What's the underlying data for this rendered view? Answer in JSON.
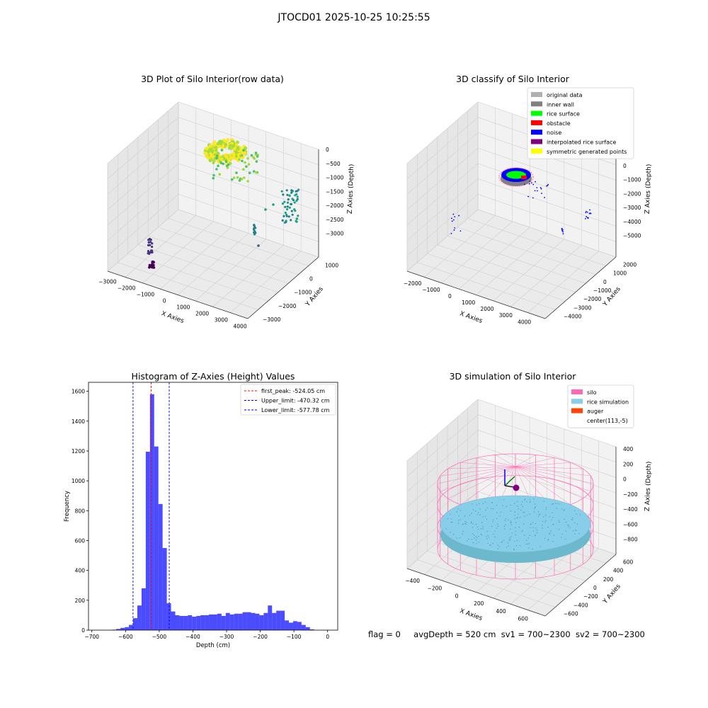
{
  "figure": {
    "suptitle": "JTOCD01 2025-10-25 10:25:55",
    "footer": {
      "flag": "flag = 0",
      "avg_depth": "avgDepth = 520 cm",
      "sv1": "sv1 = 700~2300",
      "sv2": "sv2 = 700~2300"
    }
  },
  "chart_data": [
    {
      "id": "raw",
      "type": "scatter",
      "title": "3D Plot of Silo Interior(row data)",
      "xlabel": "X Axies",
      "ylabel": "Y Axies",
      "zlabel": "Z Axies (Depth)",
      "x_ticks": [
        "−3000",
        "−2000",
        "−1000",
        "0",
        "1000",
        "2000",
        "3000",
        "4000"
      ],
      "y_ticks": [
        "1000",
        "0",
        "−1000",
        "−2000",
        "−3000"
      ],
      "z_ticks": [
        "0",
        "−500",
        "−1000",
        "−1500",
        "−2000",
        "−2500",
        "−3000"
      ],
      "colormap": "viridis"
    },
    {
      "id": "classify",
      "type": "scatter",
      "title": "3D classify of Silo Interior",
      "xlabel": "X Axies",
      "ylabel": "Y Axies",
      "zlabel": "Z Axies (Depth)",
      "x_ticks": [
        "−2000",
        "−1000",
        "0",
        "1000",
        "2000",
        "3000",
        "4000"
      ],
      "y_ticks": [
        "2000",
        "1000",
        "0",
        "−1000",
        "−2000",
        "−3000",
        "−4000"
      ],
      "z_ticks": [
        "1000",
        "0",
        "−1000",
        "−2000",
        "−3000",
        "−4000",
        "−5000"
      ],
      "z_tick_cut": "000",
      "legend_position": "top-right",
      "legend": [
        {
          "label": "original data",
          "color": "#b0b0b0"
        },
        {
          "label": "inner wall",
          "color": "#808080"
        },
        {
          "label": "rice surface",
          "color": "#00ff00"
        },
        {
          "label": "obstacle",
          "color": "#ff0000"
        },
        {
          "label": "noise",
          "color": "#0000ff"
        },
        {
          "label": "interpolated rice surface",
          "color": "#800080"
        },
        {
          "label": "symmetric generated points",
          "color": "#ffff00"
        }
      ]
    },
    {
      "id": "hist",
      "type": "bar",
      "title": "Histogram of Z-Axies (Height) Values",
      "xlabel": "Depth (cm)",
      "ylabel": "Frequency",
      "xlim": [
        -710,
        30
      ],
      "ylim": [
        0,
        1660
      ],
      "x_ticks": [
        -700,
        -600,
        -500,
        -400,
        -300,
        -200,
        -100,
        0
      ],
      "y_ticks": [
        0,
        200,
        400,
        600,
        800,
        1000,
        1200,
        1400,
        1600
      ],
      "bar_color": "#0000ff",
      "bin_width": 12.5,
      "bin_starts": [
        -640,
        -627.5,
        -615,
        -602.5,
        -590,
        -577.5,
        -565,
        -552.5,
        -540,
        -527.5,
        -515,
        -502.5,
        -490,
        -477.5,
        -465,
        -452.5,
        -440,
        -427.5,
        -415,
        -402.5,
        -390,
        -377.5,
        -365,
        -352.5,
        -340,
        -327.5,
        -315,
        -302.5,
        -290,
        -277.5,
        -265,
        -252.5,
        -240,
        -227.5,
        -215,
        -202.5,
        -190,
        -177.5,
        -165,
        -152.5,
        -140,
        -127.5,
        -115,
        -102.5,
        -90,
        -77.5,
        -65,
        -52.5,
        -40,
        -27.5,
        -15
      ],
      "values": [
        3,
        8,
        15,
        20,
        35,
        80,
        165,
        280,
        1195,
        1580,
        1230,
        845,
        550,
        180,
        125,
        100,
        95,
        95,
        100,
        90,
        95,
        100,
        100,
        105,
        105,
        110,
        95,
        115,
        105,
        110,
        110,
        120,
        120,
        115,
        110,
        100,
        115,
        165,
        115,
        130,
        130,
        65,
        50,
        60,
        55,
        35,
        20,
        5,
        0,
        0,
        0
      ],
      "lines": [
        {
          "label": "first_peak: -524.05 cm",
          "value": -524.05,
          "color": "#ff0000"
        },
        {
          "label": "Upper_limit: -470.32 cm",
          "value": -470.32,
          "color": "#0000ff"
        },
        {
          "label": "Lower_limit: -577.78 cm",
          "value": -577.78,
          "color": "#0000ff"
        }
      ],
      "legend_position": "top-right"
    },
    {
      "id": "sim",
      "type": "scatter",
      "title": "3D simulation of Silo Interior",
      "xlabel": "X Axies",
      "ylabel": "Y Axies",
      "zlabel": "Z Axies (Depth)",
      "x_ticks": [
        "−400",
        "−200",
        "0",
        "200",
        "400",
        "600"
      ],
      "y_ticks": [
        "600",
        "400",
        "200",
        "0",
        "−200",
        "−400",
        "−600"
      ],
      "z_ticks": [
        "400",
        "200",
        "0",
        "−200",
        "−400",
        "−600",
        "−800"
      ],
      "legend_position": "top-right",
      "legend": [
        {
          "label": "silo",
          "color": "#ff69b4"
        },
        {
          "label": "rice simulation",
          "color": "#87ceeb"
        },
        {
          "label": "auger",
          "color": "#ff4500"
        },
        {
          "label": "center(113,-5)",
          "color": "#ffffff"
        }
      ]
    }
  ]
}
